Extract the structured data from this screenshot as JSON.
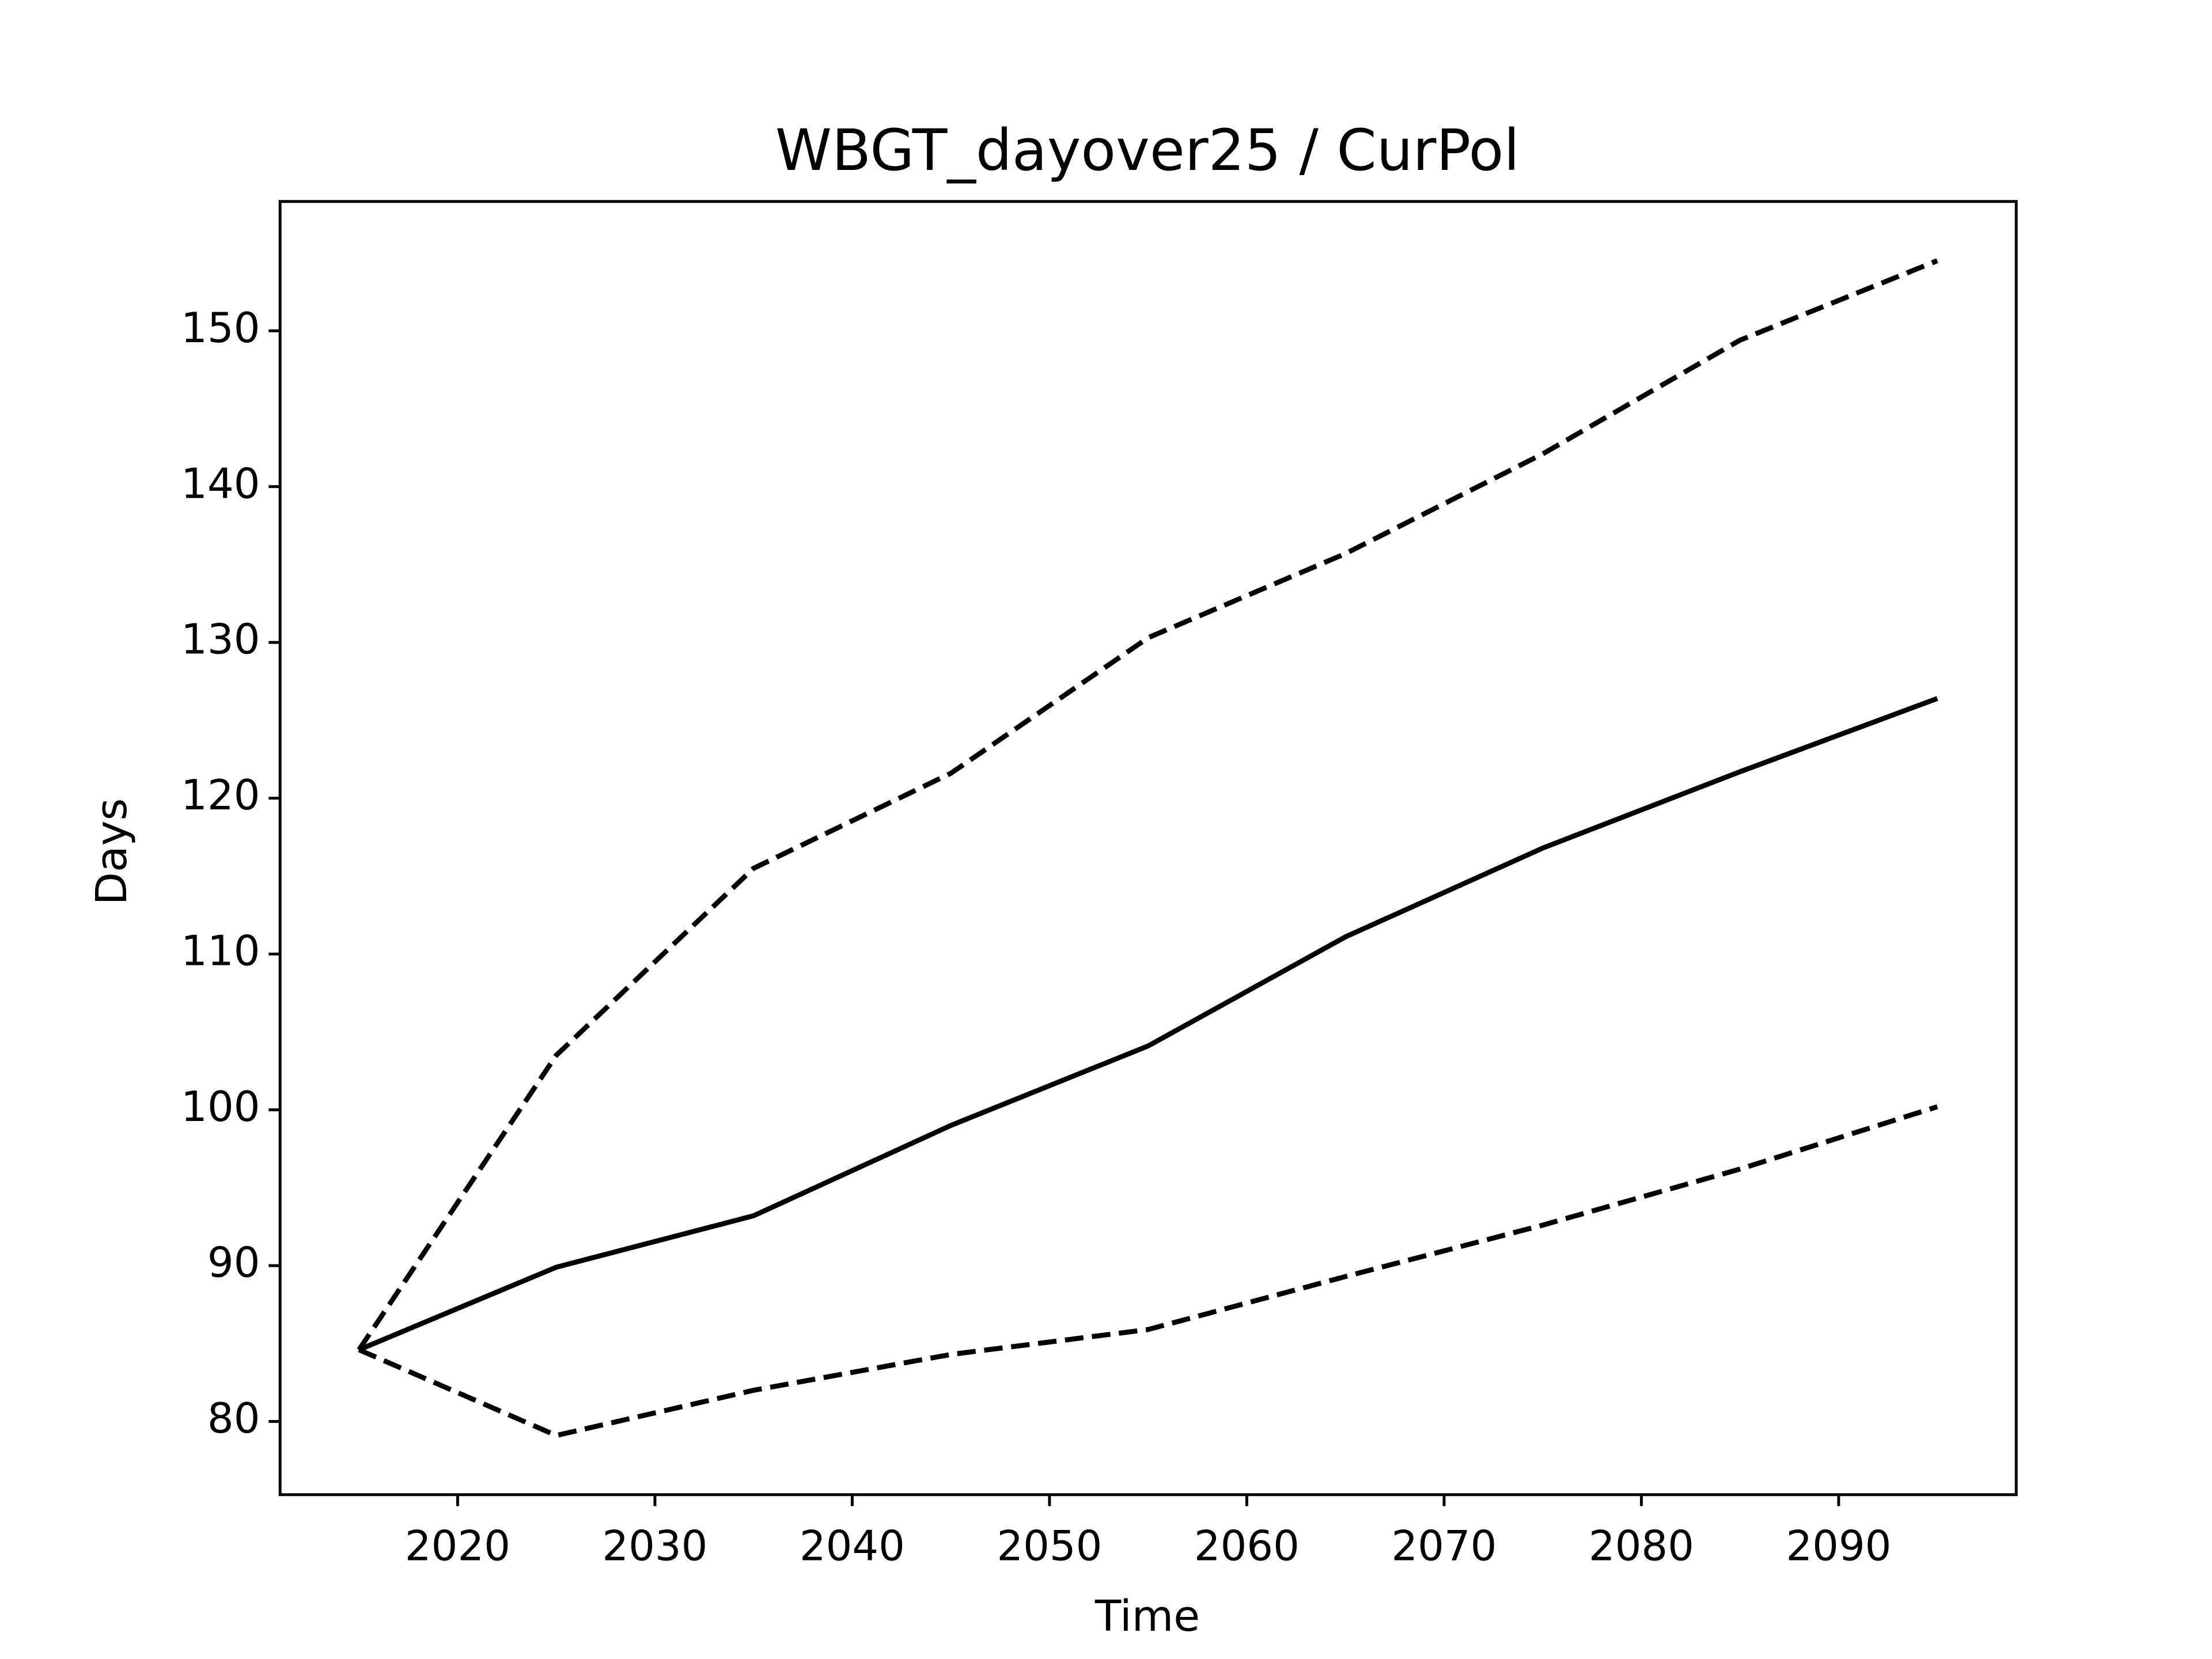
{
  "chart_data": {
    "type": "line",
    "title": "WBGT_dayover25 / CurPol",
    "xlabel": "Time",
    "ylabel": "Days",
    "x": [
      2015,
      2025,
      2035,
      2045,
      2055,
      2065,
      2075,
      2085,
      2095
    ],
    "series": [
      {
        "color": "#000000",
        "linestyle": "solid",
        "values": [
          84.6,
          89.9,
          93.2,
          99.0,
          104.1,
          111.1,
          116.8,
          121.7,
          126.4
        ]
      },
      {
        "color": "#000000",
        "linestyle": "dashed",
        "values": [
          84.6,
          103.5,
          115.5,
          121.6,
          130.3,
          135.7,
          142.1,
          149.4,
          154.5
        ]
      },
      {
        "color": "#000000",
        "linestyle": "dashed",
        "values": [
          84.6,
          79.1,
          82.0,
          84.3,
          85.9,
          89.3,
          92.6,
          96.2,
          100.2
        ]
      }
    ],
    "xlim": [
      2011,
      2099
    ],
    "xticks": [
      2020,
      2030,
      2040,
      2050,
      2060,
      2070,
      2080,
      2090
    ],
    "ylim": [
      75.3,
      158.3
    ],
    "yticks": [
      80,
      90,
      100,
      110,
      120,
      130,
      140,
      150
    ]
  }
}
